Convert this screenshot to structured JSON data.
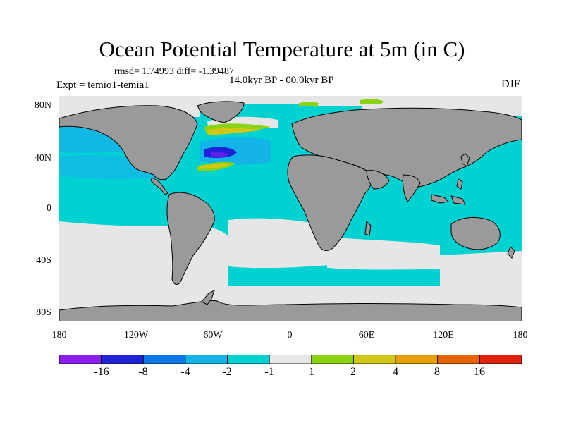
{
  "title": "Ocean Potential Temperature at 5m (in C)",
  "stats": "rmsd= 1.74993 diff= -1.39487",
  "period": "14.0kyr BP - 00.0kyr BP",
  "experiment": "Expt = temio1-temia1",
  "season": "DJF",
  "lat_labels": [
    "80N",
    "40N",
    "0",
    "40S",
    "80S"
  ],
  "lon_labels": [
    "180",
    "120W",
    "60W",
    "0",
    "60E",
    "120E",
    "180"
  ],
  "colors": {
    "land": "#9a9a9a",
    "ocean_base": "#00d2d2",
    "neutral": "#e6e6e6"
  },
  "colorbar": {
    "labels": [
      "-16",
      "-8",
      "-4",
      "-2",
      "-1",
      "1",
      "2",
      "4",
      "8",
      "16"
    ],
    "colors": [
      "#8a1ef0",
      "#1e22d8",
      "#0a78e6",
      "#14b4e8",
      "#00d2d2",
      "#e6e6e6",
      "#8cd214",
      "#d2c814",
      "#e6a000",
      "#e66400",
      "#e02010"
    ]
  }
}
